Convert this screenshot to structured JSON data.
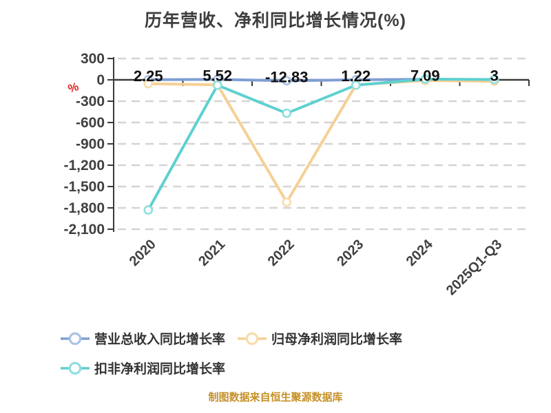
{
  "title": "历年营收、净利同比增长情况(%)",
  "footer": "制图数据来自恒生聚源数据库",
  "chart_data": {
    "type": "line",
    "categories": [
      "2020",
      "2021",
      "2022",
      "2023",
      "2024",
      "2025Q1-Q3"
    ],
    "series": [
      {
        "name": "营业总收入同比增长率",
        "color": "#7f9ed3",
        "ring": "#a9c3e6",
        "values": [
          2.25,
          5.52,
          -12.83,
          1.22,
          7.09,
          3
        ],
        "labels": [
          "2.25",
          "5.52",
          "-12.83",
          "1.22",
          "7.09",
          "3"
        ]
      },
      {
        "name": "归母净利润同比增长率",
        "color": "#f5d095",
        "ring": "#f8dcab",
        "values": [
          -55,
          -70,
          -1720,
          -70,
          -10,
          -20
        ]
      },
      {
        "name": "扣非净利润同比增长率",
        "color": "#5fd0d0",
        "ring": "#8fdede",
        "values": [
          -1830,
          -75,
          -470,
          -75,
          10,
          5
        ]
      }
    ],
    "ylabel": "%",
    "yticks": [
      300,
      0,
      -300,
      -600,
      -900,
      -1200,
      -1500,
      -1800,
      -2100
    ],
    "ytick_labels": [
      "300",
      "0",
      "-300",
      "-600",
      "-900",
      "-1,200",
      "-1,500",
      "-1,800",
      "-2,100"
    ],
    "ylim": [
      -2100,
      300
    ],
    "grid": "horizontal-dashed",
    "legend_position": "bottom"
  },
  "colors": {
    "axis": "#3a3a3a",
    "grid": "#d4d4d4",
    "tick_text": "#404040",
    "data_label_text": "#111111",
    "percent_symbol": "#e02222",
    "title_text": "#3e3e3e",
    "footer_text": "#c69026",
    "background": "#ffffff"
  }
}
